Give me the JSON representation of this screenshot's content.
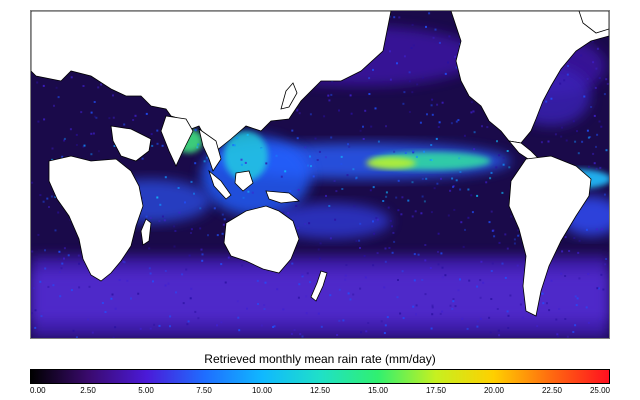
{
  "map": {
    "kind": "global rain-rate map",
    "land_color": "#ffffff",
    "coastline_color": "#000000",
    "ocean_base_color": "#1a0a4a"
  },
  "colorbar": {
    "title": "Retrieved monthly mean rain rate (mm/day)",
    "min": 0,
    "max": 25,
    "tick_labels": [
      "0.00",
      "2.50",
      "5.00",
      "7.50",
      "10.00",
      "12.50",
      "15.00",
      "17.50",
      "20.00",
      "22.50",
      "25.00"
    ],
    "colors": [
      "#000000",
      "#3a0a6e",
      "#4b1ad8",
      "#1f6dff",
      "#10b8ff",
      "#1fe0c8",
      "#30f070",
      "#c6f020",
      "#ffd000",
      "#ff6a10",
      "#ff1020"
    ]
  }
}
